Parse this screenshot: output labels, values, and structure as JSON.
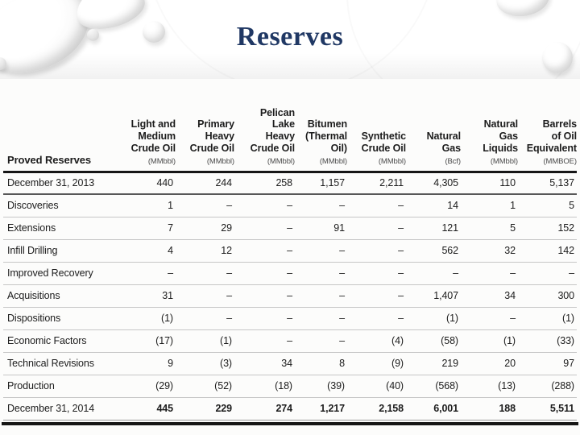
{
  "slide": {
    "title": "Reserves",
    "title_color": "#203864"
  },
  "table": {
    "corner_label": "Proved Reserves",
    "columns": [
      {
        "header": "Light and\nMedium\nCrude Oil",
        "unit": "(MMbbl)"
      },
      {
        "header": "Primary\nHeavy\nCrude Oil",
        "unit": "(MMbbl)"
      },
      {
        "header": "Pelican\nLake\nHeavy\nCrude Oil",
        "unit": "(MMbbl)"
      },
      {
        "header": "Bitumen\n(Thermal\nOil)",
        "unit": "(MMbbl)"
      },
      {
        "header": "Synthetic\nCrude Oil",
        "unit": "(MMbbl)"
      },
      {
        "header": "Natural\nGas",
        "unit": "(Bcf)"
      },
      {
        "header": "Natural\nGas\nLiquids",
        "unit": "(MMbbl)"
      },
      {
        "header": "Barrels\nof Oil\nEquivalent",
        "unit": "(MMBOE)"
      }
    ],
    "rows": [
      {
        "label": "December 31, 2013",
        "style": "opening",
        "values": [
          "440",
          "244",
          "258",
          "1,157",
          "2,211",
          "4,305",
          "110",
          "5,137"
        ]
      },
      {
        "label": "Discoveries",
        "style": "normal",
        "values": [
          "1",
          "–",
          "–",
          "–",
          "–",
          "14",
          "1",
          "5"
        ]
      },
      {
        "label": "Extensions",
        "style": "normal",
        "values": [
          "7",
          "29",
          "–",
          "91",
          "–",
          "121",
          "5",
          "152"
        ]
      },
      {
        "label": "Infill Drilling",
        "style": "normal",
        "values": [
          "4",
          "12",
          "–",
          "–",
          "–",
          "562",
          "32",
          "142"
        ]
      },
      {
        "label": "Improved Recovery",
        "style": "normal",
        "values": [
          "–",
          "–",
          "–",
          "–",
          "–",
          "–",
          "–",
          "–"
        ]
      },
      {
        "label": "Acquisitions",
        "style": "normal",
        "values": [
          "31",
          "–",
          "–",
          "–",
          "–",
          "1,407",
          "34",
          "300"
        ]
      },
      {
        "label": "Dispositions",
        "style": "normal",
        "values": [
          "(1)",
          "–",
          "–",
          "–",
          "–",
          "(1)",
          "–",
          "(1)"
        ]
      },
      {
        "label": "Economic Factors",
        "style": "normal",
        "values": [
          "(17)",
          "(1)",
          "–",
          "–",
          "(4)",
          "(58)",
          "(1)",
          "(33)"
        ]
      },
      {
        "label": "Technical Revisions",
        "style": "normal",
        "values": [
          "9",
          "(3)",
          "34",
          "8",
          "(9)",
          "219",
          "20",
          "97"
        ]
      },
      {
        "label": "Production",
        "style": "normal",
        "values": [
          "(29)",
          "(52)",
          "(18)",
          "(39)",
          "(40)",
          "(568)",
          "(13)",
          "(288)"
        ]
      },
      {
        "label": "December 31, 2014",
        "style": "closing",
        "values": [
          "445",
          "229",
          "274",
          "1,217",
          "2,158",
          "6,001",
          "188",
          "5,511"
        ]
      }
    ]
  }
}
